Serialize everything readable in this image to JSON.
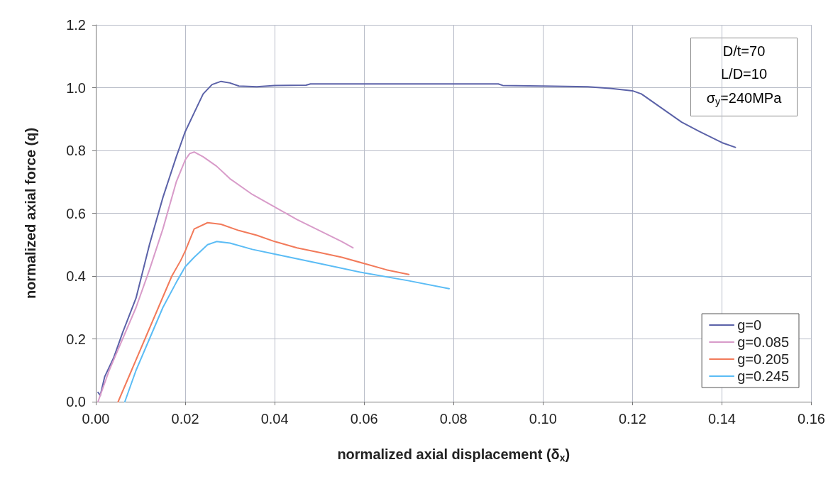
{
  "chart_data": {
    "type": "line",
    "xlabel": "normalized axial displacement (δ$_{x}$)",
    "ylabel": "normalized axial force (q)",
    "xlim": [
      0,
      0.16
    ],
    "xticks": [
      {
        "value": 0,
        "label": "0.00"
      },
      {
        "value": 0.02,
        "label": "0.02"
      },
      {
        "value": 0.04,
        "label": "0.04"
      },
      {
        "value": 0.06,
        "label": "0.06"
      },
      {
        "value": 0.08,
        "label": "0.08"
      },
      {
        "value": 0.1,
        "label": "0.10"
      },
      {
        "value": 0.12,
        "label": "0.12"
      },
      {
        "value": 0.14,
        "label": "0.14"
      },
      {
        "value": 0.16,
        "label": "0.16"
      }
    ],
    "ylim": [
      0,
      1.2
    ],
    "yticks": [
      {
        "value": 0,
        "label": "0.0"
      },
      {
        "value": 0.2,
        "label": "0.2"
      },
      {
        "value": 0.4,
        "label": "0.4"
      },
      {
        "value": 0.6,
        "label": "0.6"
      },
      {
        "value": 0.8,
        "label": "0.8"
      },
      {
        "value": 1,
        "label": "1.0"
      },
      {
        "value": 1.2,
        "label": "1.2"
      }
    ],
    "grid": true,
    "legend": "bottom right",
    "marker": "none",
    "line_style": "solid",
    "annotations": [
      "D/t=70",
      "L/D=10",
      "σ$_{y}$=240MPa"
    ],
    "series": [
      {
        "name": "g=0",
        "color": "#5b62a8",
        "x": [
          0.0005,
          0.001,
          0.002,
          0.004,
          0.006,
          0.009,
          0.012,
          0.015,
          0.018,
          0.02,
          0.022,
          0.024,
          0.026,
          0.028,
          0.03,
          0.032,
          0.036,
          0.04,
          0.047,
          0.048,
          0.07,
          0.09,
          0.091,
          0.1,
          0.11,
          0.115,
          0.12,
          0.122,
          0.125,
          0.128,
          0.131,
          0.135,
          0.14,
          0.143
        ],
        "values": [
          0.03,
          0.02,
          0.08,
          0.14,
          0.22,
          0.33,
          0.5,
          0.65,
          0.78,
          0.86,
          0.92,
          0.98,
          1.01,
          1.02,
          1.015,
          1.005,
          1.003,
          1.007,
          1.008,
          1.012,
          1.012,
          1.012,
          1.007,
          1.005,
          1.003,
          0.998,
          0.99,
          0.98,
          0.95,
          0.92,
          0.89,
          0.86,
          0.825,
          0.81
        ]
      },
      {
        "name": "g=0.085",
        "color": "#d89bc9",
        "x": [
          0.0005,
          0.003,
          0.006,
          0.009,
          0.012,
          0.015,
          0.018,
          0.02,
          0.021,
          0.022,
          0.024,
          0.027,
          0.03,
          0.035,
          0.04,
          0.045,
          0.05,
          0.055,
          0.0575
        ],
        "values": [
          0,
          0.1,
          0.2,
          0.3,
          0.42,
          0.55,
          0.7,
          0.77,
          0.79,
          0.795,
          0.78,
          0.75,
          0.71,
          0.66,
          0.62,
          0.58,
          0.545,
          0.51,
          0.49
        ]
      },
      {
        "name": "g=0.205",
        "color": "#f27a5a",
        "x": [
          0.005,
          0.008,
          0.011,
          0.014,
          0.017,
          0.019,
          0.02,
          0.022,
          0.025,
          0.028,
          0.032,
          0.036,
          0.04,
          0.045,
          0.05,
          0.055,
          0.06,
          0.065,
          0.07
        ],
        "values": [
          0,
          0.1,
          0.2,
          0.3,
          0.4,
          0.45,
          0.48,
          0.55,
          0.57,
          0.565,
          0.545,
          0.53,
          0.51,
          0.49,
          0.475,
          0.46,
          0.44,
          0.42,
          0.405
        ]
      },
      {
        "name": "g=0.245",
        "color": "#5bbcf5",
        "x": [
          0.0065,
          0.009,
          0.012,
          0.015,
          0.018,
          0.02,
          0.022,
          0.025,
          0.027,
          0.03,
          0.035,
          0.04,
          0.05,
          0.06,
          0.07,
          0.079
        ],
        "values": [
          0,
          0.1,
          0.2,
          0.3,
          0.38,
          0.43,
          0.46,
          0.5,
          0.51,
          0.505,
          0.485,
          0.47,
          0.44,
          0.41,
          0.385,
          0.36
        ]
      }
    ]
  }
}
